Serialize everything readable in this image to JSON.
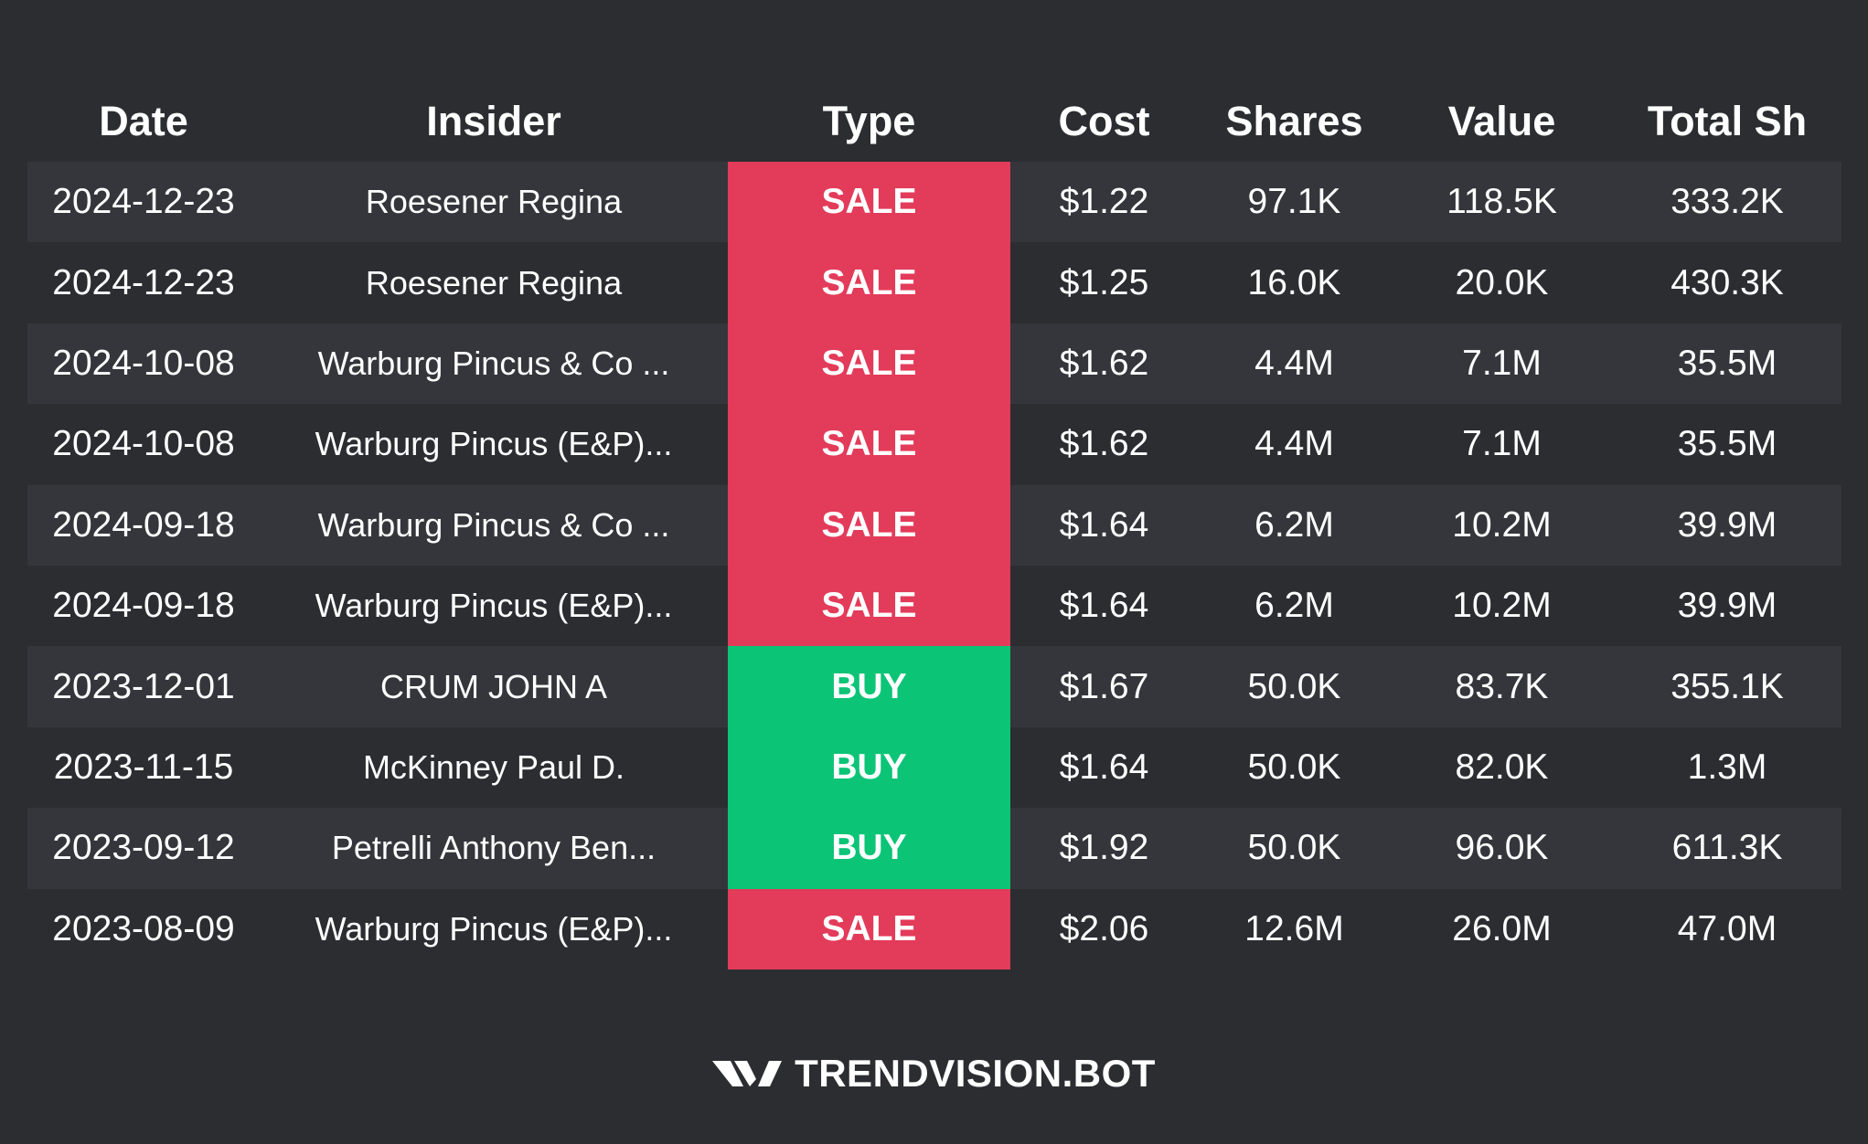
{
  "table": {
    "headers": [
      "Date",
      "Insider",
      "Type",
      "Cost",
      "Shares",
      "Value",
      "Total Sh"
    ],
    "rows": [
      {
        "date": "2024-12-23",
        "insider": "Roesener Regina",
        "type": "SALE",
        "cost": "$1.22",
        "shares": "97.1K",
        "value": "118.5K",
        "total": "333.2K"
      },
      {
        "date": "2024-12-23",
        "insider": "Roesener Regina",
        "type": "SALE",
        "cost": "$1.25",
        "shares": "16.0K",
        "value": "20.0K",
        "total": "430.3K"
      },
      {
        "date": "2024-10-08",
        "insider": "Warburg Pincus & Co ...",
        "type": "SALE",
        "cost": "$1.62",
        "shares": "4.4M",
        "value": "7.1M",
        "total": "35.5M"
      },
      {
        "date": "2024-10-08",
        "insider": "Warburg Pincus (E&P)...",
        "type": "SALE",
        "cost": "$1.62",
        "shares": "4.4M",
        "value": "7.1M",
        "total": "35.5M"
      },
      {
        "date": "2024-09-18",
        "insider": "Warburg Pincus & Co ...",
        "type": "SALE",
        "cost": "$1.64",
        "shares": "6.2M",
        "value": "10.2M",
        "total": "39.9M"
      },
      {
        "date": "2024-09-18",
        "insider": "Warburg Pincus (E&P)...",
        "type": "SALE",
        "cost": "$1.64",
        "shares": "6.2M",
        "value": "10.2M",
        "total": "39.9M"
      },
      {
        "date": "2023-12-01",
        "insider": "CRUM JOHN A",
        "type": "BUY",
        "cost": "$1.67",
        "shares": "50.0K",
        "value": "83.7K",
        "total": "355.1K"
      },
      {
        "date": "2023-11-15",
        "insider": "McKinney Paul D.",
        "type": "BUY",
        "cost": "$1.64",
        "shares": "50.0K",
        "value": "82.0K",
        "total": "1.3M"
      },
      {
        "date": "2023-09-12",
        "insider": "Petrelli Anthony Ben...",
        "type": "BUY",
        "cost": "$1.92",
        "shares": "50.0K",
        "value": "96.0K",
        "total": "611.3K"
      },
      {
        "date": "2023-08-09",
        "insider": "Warburg Pincus (E&P)...",
        "type": "SALE",
        "cost": "$2.06",
        "shares": "12.6M",
        "value": "26.0M",
        "total": "47.0M"
      }
    ]
  },
  "brand": {
    "name": "TRENDVISION.BOT",
    "logo_icon": "trendvision-logo-icon"
  },
  "colors": {
    "background": "#2b2d31",
    "row_alt": "#34363b",
    "sale": "#e33b5a",
    "buy": "#0cc476"
  }
}
